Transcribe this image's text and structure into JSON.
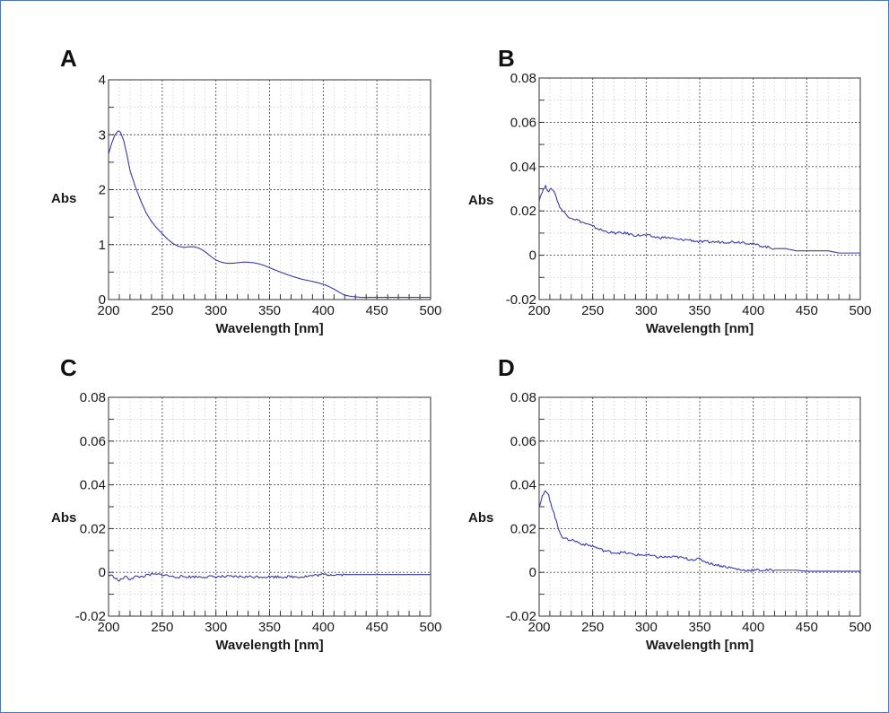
{
  "chart_data": [
    {
      "type": "line",
      "panel_label": "A",
      "xlabel": "Wavelength [nm]",
      "ylabel": "Abs",
      "xlim": [
        200,
        500
      ],
      "ylim": [
        0,
        4
      ],
      "xticks": [
        200,
        250,
        300,
        350,
        400,
        450,
        500
      ],
      "yticks": [
        0,
        1,
        2,
        3,
        4
      ],
      "grid": true,
      "line_color": "#3a3aa8",
      "series": [
        {
          "x": [
            200,
            203,
            206,
            209,
            211,
            214,
            217,
            220,
            225,
            230,
            235,
            240,
            245,
            250,
            255,
            260,
            265,
            270,
            275,
            280,
            285,
            290,
            295,
            300,
            305,
            310,
            315,
            320,
            325,
            330,
            335,
            340,
            345,
            350,
            360,
            370,
            380,
            390,
            400,
            405,
            410,
            415,
            420,
            425,
            430,
            435,
            440,
            450,
            460,
            470,
            480,
            490,
            500
          ],
          "y": [
            2.65,
            2.85,
            3.0,
            3.07,
            3.05,
            2.9,
            2.65,
            2.35,
            2.05,
            1.8,
            1.58,
            1.42,
            1.3,
            1.2,
            1.1,
            1.02,
            0.97,
            0.95,
            0.96,
            0.96,
            0.93,
            0.87,
            0.79,
            0.72,
            0.68,
            0.66,
            0.66,
            0.67,
            0.68,
            0.68,
            0.67,
            0.65,
            0.62,
            0.58,
            0.5,
            0.43,
            0.37,
            0.33,
            0.28,
            0.24,
            0.19,
            0.13,
            0.08,
            0.06,
            0.05,
            0.04,
            0.04,
            0.04,
            0.04,
            0.04,
            0.04,
            0.04,
            0.04
          ]
        }
      ]
    },
    {
      "type": "line",
      "panel_label": "B",
      "xlabel": "Wavelength [nm]",
      "ylabel": "Abs",
      "xlim": [
        200,
        500
      ],
      "ylim": [
        -0.02,
        0.08
      ],
      "xticks": [
        200,
        250,
        300,
        350,
        400,
        450,
        500
      ],
      "yticks": [
        -0.02,
        0,
        0.02,
        0.04,
        0.06,
        0.08
      ],
      "ytick_labels": [
        "-0.02",
        "0",
        "0.02",
        "0.04",
        "0.06",
        "0.08"
      ],
      "grid": true,
      "line_color": "#3a3aa8",
      "series": [
        {
          "x": [
            200,
            203,
            206,
            209,
            212,
            215,
            218,
            222,
            226,
            230,
            235,
            240,
            245,
            250,
            260,
            270,
            280,
            290,
            300,
            310,
            320,
            330,
            340,
            350,
            360,
            370,
            380,
            390,
            400,
            410,
            420,
            430,
            440,
            450,
            460,
            470,
            480,
            490,
            500
          ],
          "y": [
            0.025,
            0.029,
            0.031,
            0.029,
            0.03,
            0.028,
            0.023,
            0.02,
            0.018,
            0.017,
            0.016,
            0.015,
            0.014,
            0.013,
            0.011,
            0.01,
            0.01,
            0.009,
            0.009,
            0.008,
            0.008,
            0.007,
            0.007,
            0.006,
            0.006,
            0.006,
            0.006,
            0.006,
            0.005,
            0.004,
            0.003,
            0.003,
            0.002,
            0.002,
            0.002,
            0.002,
            0.001,
            0.001,
            0.001
          ]
        }
      ]
    },
    {
      "type": "line",
      "panel_label": "C",
      "xlabel": "Wavelength [nm]",
      "ylabel": "Abs",
      "xlim": [
        200,
        500
      ],
      "ylim": [
        -0.02,
        0.08
      ],
      "xticks": [
        200,
        250,
        300,
        350,
        400,
        450,
        500
      ],
      "yticks": [
        -0.02,
        0,
        0.02,
        0.04,
        0.06,
        0.08
      ],
      "ytick_labels": [
        "-0.02",
        "0",
        "0.02",
        "0.04",
        "0.06",
        "0.08"
      ],
      "grid": true,
      "line_color": "#3a3aa8",
      "series": [
        {
          "x": [
            200,
            205,
            210,
            215,
            220,
            225,
            230,
            240,
            250,
            260,
            280,
            300,
            320,
            340,
            360,
            380,
            400,
            420,
            440,
            460,
            480,
            500
          ],
          "y": [
            -0.001,
            -0.002,
            -0.004,
            -0.002,
            -0.003,
            -0.002,
            -0.002,
            -0.001,
            -0.001,
            -0.002,
            -0.002,
            -0.002,
            -0.002,
            -0.002,
            -0.002,
            -0.002,
            -0.001,
            -0.001,
            -0.001,
            -0.001,
            -0.001,
            -0.001
          ]
        }
      ]
    },
    {
      "type": "line",
      "panel_label": "D",
      "xlabel": "Wavelength [nm]",
      "ylabel": "Abs",
      "xlim": [
        200,
        500
      ],
      "ylim": [
        -0.02,
        0.08
      ],
      "xticks": [
        200,
        250,
        300,
        350,
        400,
        450,
        500
      ],
      "yticks": [
        -0.02,
        0,
        0.02,
        0.04,
        0.06,
        0.08
      ],
      "ytick_labels": [
        "-0.02",
        "0",
        "0.02",
        "0.04",
        "0.06",
        "0.08"
      ],
      "grid": true,
      "line_color": "#3a3aa8",
      "series": [
        {
          "x": [
            200,
            203,
            206,
            209,
            212,
            215,
            218,
            222,
            226,
            230,
            235,
            240,
            250,
            260,
            270,
            280,
            290,
            300,
            310,
            320,
            330,
            340,
            350,
            360,
            370,
            380,
            390,
            400,
            410,
            420,
            430,
            440,
            450,
            460,
            470,
            480,
            490,
            500
          ],
          "y": [
            0.03,
            0.035,
            0.037,
            0.035,
            0.03,
            0.025,
            0.02,
            0.016,
            0.015,
            0.015,
            0.014,
            0.013,
            0.012,
            0.01,
            0.009,
            0.009,
            0.008,
            0.008,
            0.007,
            0.007,
            0.007,
            0.006,
            0.006,
            0.004,
            0.003,
            0.002,
            0.001,
            0.001,
            0.001,
            0.001,
            0.001,
            0.001,
            0.0005,
            0.0005,
            0.0005,
            0.0005,
            0.0005,
            0.0005
          ]
        }
      ]
    }
  ]
}
